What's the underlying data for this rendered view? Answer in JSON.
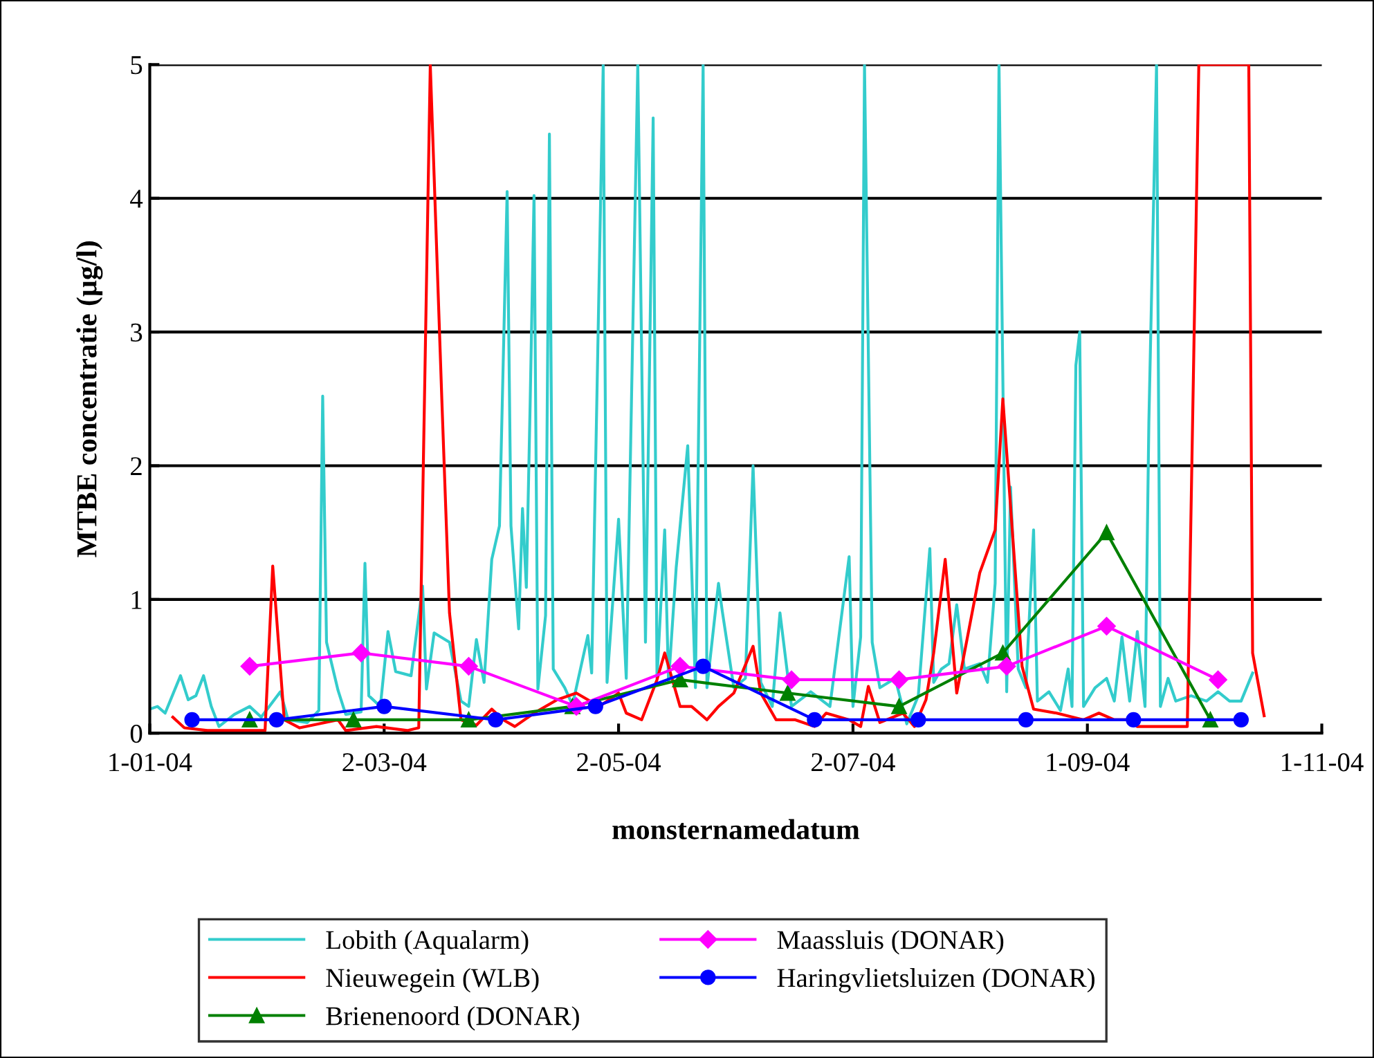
{
  "chart_data": {
    "type": "line",
    "xlabel": "monsternamedatum",
    "ylabel": "MTBE concentratie (µg/l)",
    "xlim": [
      "2004-01-01",
      "2004-11-01"
    ],
    "xticks": [
      {
        "value": "2004-01-01",
        "label": "1-01-04"
      },
      {
        "value": "2004-03-02",
        "label": "2-03-04"
      },
      {
        "value": "2004-05-02",
        "label": "2-05-04"
      },
      {
        "value": "2004-07-02",
        "label": "2-07-04"
      },
      {
        "value": "2004-09-01",
        "label": "1-09-04"
      },
      {
        "value": "2004-11-01",
        "label": "1-11-04"
      }
    ],
    "ylim": [
      0,
      5
    ],
    "yticks": [
      0,
      1,
      2,
      3,
      4,
      5
    ],
    "grid": "y",
    "legend": "bottom",
    "series": [
      {
        "name": "Lobith (Aqualarm)",
        "color": "#33cccc",
        "marker": "none",
        "x": [
          "2004-01-01",
          "2004-01-03",
          "2004-01-05",
          "2004-01-09",
          "2004-01-11",
          "2004-01-13",
          "2004-01-15",
          "2004-01-17",
          "2004-01-19",
          "2004-01-23",
          "2004-01-27",
          "2004-01-30",
          "2004-02-04",
          "2004-02-06",
          "2004-02-11",
          "2004-02-14",
          "2004-02-15",
          "2004-02-16",
          "2004-02-19",
          "2004-02-21",
          "2004-02-25",
          "2004-02-26",
          "2004-02-27",
          "2004-03-01",
          "2004-03-03",
          "2004-03-05",
          "2004-03-09",
          "2004-03-12",
          "2004-03-13",
          "2004-03-15",
          "2004-03-19",
          "2004-03-22",
          "2004-03-24",
          "2004-03-26",
          "2004-03-28",
          "2004-03-30",
          "2004-04-01",
          "2004-04-03",
          "2004-04-04",
          "2004-04-06",
          "2004-04-07",
          "2004-04-08",
          "2004-04-09",
          "2004-04-10",
          "2004-04-11",
          "2004-04-13",
          "2004-04-14",
          "2004-04-15",
          "2004-04-18",
          "2004-04-20",
          "2004-04-24",
          "2004-04-25",
          "2004-04-28",
          "2004-04-29",
          "2004-05-02",
          "2004-05-04",
          "2004-05-07",
          "2004-05-09",
          "2004-05-11",
          "2004-05-12",
          "2004-05-14",
          "2004-05-15",
          "2004-05-17",
          "2004-05-20",
          "2004-05-22",
          "2004-05-24",
          "2004-05-25",
          "2004-05-28",
          "2004-05-29",
          "2004-06-01",
          "2004-06-04",
          "2004-06-06",
          "2004-06-08",
          "2004-06-11",
          "2004-06-13",
          "2004-06-16",
          "2004-06-21",
          "2004-06-26",
          "2004-07-01",
          "2004-07-02",
          "2004-07-04",
          "2004-07-05",
          "2004-07-07",
          "2004-07-09",
          "2004-07-13",
          "2004-07-16",
          "2004-07-19",
          "2004-07-22",
          "2004-07-23",
          "2004-07-25",
          "2004-07-27",
          "2004-07-29",
          "2004-07-31",
          "2004-08-04",
          "2004-08-06",
          "2004-08-08",
          "2004-08-09",
          "2004-08-11",
          "2004-08-12",
          "2004-08-14",
          "2004-08-16",
          "2004-08-18",
          "2004-08-19",
          "2004-08-22",
          "2004-08-25",
          "2004-08-27",
          "2004-08-28",
          "2004-08-29",
          "2004-08-30",
          "2004-08-31",
          "2004-09-03",
          "2004-09-06",
          "2004-09-08",
          "2004-09-10",
          "2004-09-12",
          "2004-09-14",
          "2004-09-16",
          "2004-09-17",
          "2004-09-19",
          "2004-09-20",
          "2004-09-22",
          "2004-09-24",
          "2004-09-28",
          "2004-10-02",
          "2004-10-05",
          "2004-10-08",
          "2004-10-11",
          "2004-10-14"
        ],
        "values": [
          0.18,
          0.2,
          0.15,
          0.43,
          0.25,
          0.28,
          0.43,
          0.2,
          0.05,
          0.14,
          0.2,
          0.12,
          0.31,
          0.1,
          0.08,
          0.17,
          2.52,
          0.68,
          0.32,
          0.14,
          0.16,
          1.27,
          0.28,
          0.2,
          0.76,
          0.46,
          0.43,
          1.1,
          0.33,
          0.75,
          0.68,
          0.24,
          0.2,
          0.7,
          0.38,
          1.3,
          1.55,
          4.05,
          1.55,
          0.78,
          1.68,
          1.09,
          2.48,
          4.02,
          0.33,
          0.88,
          4.48,
          0.48,
          0.34,
          0.21,
          0.73,
          0.45,
          5,
          0.38,
          1.6,
          0.41,
          5,
          0.68,
          4.6,
          0.41,
          1.52,
          0.38,
          1.24,
          2.15,
          0.34,
          5,
          0.34,
          1.12,
          0.91,
          0.34,
          0.41,
          2.0,
          0.38,
          0.2,
          0.9,
          0.2,
          0.31,
          0.2,
          1.32,
          0.2,
          0.72,
          5,
          0.68,
          0.34,
          0.41,
          0.07,
          0.28,
          1.38,
          0.38,
          0.48,
          0.52,
          0.96,
          0.48,
          0.52,
          0.38,
          1.12,
          5,
          0.31,
          1.84,
          0.48,
          0.34,
          1.52,
          0.24,
          0.31,
          0.17,
          0.48,
          0.2,
          2.75,
          3.0,
          0.2,
          0.34,
          0.41,
          0.24,
          0.72,
          0.24,
          0.76,
          0.2,
          2.33,
          5,
          0.2,
          0.41,
          0.24,
          0.28,
          0.24,
          0.31,
          0.24,
          0.24,
          0.45
        ]
      },
      {
        "name": "Nieuwegein (WLB)",
        "color": "#ff0000",
        "marker": "none",
        "x": [
          "2004-01-07",
          "2004-01-10",
          "2004-01-16",
          "2004-01-31",
          "2004-02-02",
          "2004-02-05",
          "2004-02-09",
          "2004-02-19",
          "2004-02-21",
          "2004-02-29",
          "2004-03-08",
          "2004-03-11",
          "2004-03-14",
          "2004-03-17",
          "2004-03-19",
          "2004-03-22",
          "2004-03-26",
          "2004-03-30",
          "2004-04-02",
          "2004-04-05",
          "2004-04-10",
          "2004-04-16",
          "2004-04-21",
          "2004-04-27",
          "2004-05-02",
          "2004-05-04",
          "2004-05-08",
          "2004-05-12",
          "2004-05-14",
          "2004-05-18",
          "2004-05-21",
          "2004-05-25",
          "2004-05-28",
          "2004-06-01",
          "2004-06-06",
          "2004-06-08",
          "2004-06-12",
          "2004-06-17",
          "2004-06-22",
          "2004-06-25",
          "2004-07-01",
          "2004-07-04",
          "2004-07-06",
          "2004-07-09",
          "2004-07-15",
          "2004-07-18",
          "2004-07-21",
          "2004-07-23",
          "2004-07-26",
          "2004-07-29",
          "2004-08-04",
          "2004-08-08",
          "2004-08-10",
          "2004-08-15",
          "2004-08-18",
          "2004-08-24",
          "2004-08-31",
          "2004-09-04",
          "2004-09-08",
          "2004-09-12",
          "2004-09-14",
          "2004-09-27",
          "2004-09-30",
          "2004-10-13",
          "2004-10-14",
          "2004-10-17"
        ],
        "values": [
          0.12,
          0.04,
          0.02,
          0.02,
          1.25,
          0.1,
          0.04,
          0.1,
          0.02,
          0.05,
          0.02,
          0.04,
          5,
          2.5,
          0.9,
          0.1,
          0.06,
          0.18,
          0.1,
          0.05,
          0.15,
          0.25,
          0.3,
          0.2,
          0.3,
          0.15,
          0.1,
          0.4,
          0.6,
          0.2,
          0.2,
          0.1,
          0.2,
          0.3,
          0.65,
          0.3,
          0.1,
          0.1,
          0.05,
          0.15,
          0.1,
          0.05,
          0.35,
          0.08,
          0.15,
          0.05,
          0.25,
          0.6,
          1.3,
          0.3,
          1.2,
          1.52,
          2.5,
          0.5,
          0.18,
          0.15,
          0.1,
          0.15,
          0.1,
          0.1,
          0.05,
          0.05,
          5,
          5,
          0.6,
          0.13
        ]
      },
      {
        "name": "Brienenoord (DONAR)",
        "color": "#008000",
        "marker": "triangle",
        "x": [
          "2004-01-27",
          "2004-02-23",
          "2004-03-24",
          "2004-04-20",
          "2004-05-18",
          "2004-06-15",
          "2004-07-14",
          "2004-08-10",
          "2004-09-06",
          "2004-10-03"
        ],
        "values": [
          0.1,
          0.1,
          0.1,
          0.2,
          0.4,
          0.3,
          0.2,
          0.6,
          1.5,
          0.1
        ]
      },
      {
        "name": "Maassluis (DONAR)",
        "color": "#ff00ff",
        "marker": "diamond",
        "x": [
          "2004-01-27",
          "2004-02-25",
          "2004-03-24",
          "2004-04-21",
          "2004-05-18",
          "2004-06-16",
          "2004-07-14",
          "2004-08-11",
          "2004-09-06",
          "2004-10-05"
        ],
        "values": [
          0.5,
          0.6,
          0.5,
          0.2,
          0.5,
          0.4,
          0.4,
          0.5,
          0.8,
          0.4
        ]
      },
      {
        "name": "Haringvlietsluizen (DONAR)",
        "color": "#0000ff",
        "marker": "circle",
        "x": [
          "2004-01-12",
          "2004-02-03",
          "2004-03-02",
          "2004-03-31",
          "2004-04-26",
          "2004-05-24",
          "2004-06-22",
          "2004-07-19",
          "2004-08-16",
          "2004-09-13",
          "2004-10-11"
        ],
        "values": [
          0.1,
          0.1,
          0.2,
          0.1,
          0.2,
          0.5,
          0.1,
          0.1,
          0.1,
          0.1,
          0.1
        ]
      }
    ]
  }
}
